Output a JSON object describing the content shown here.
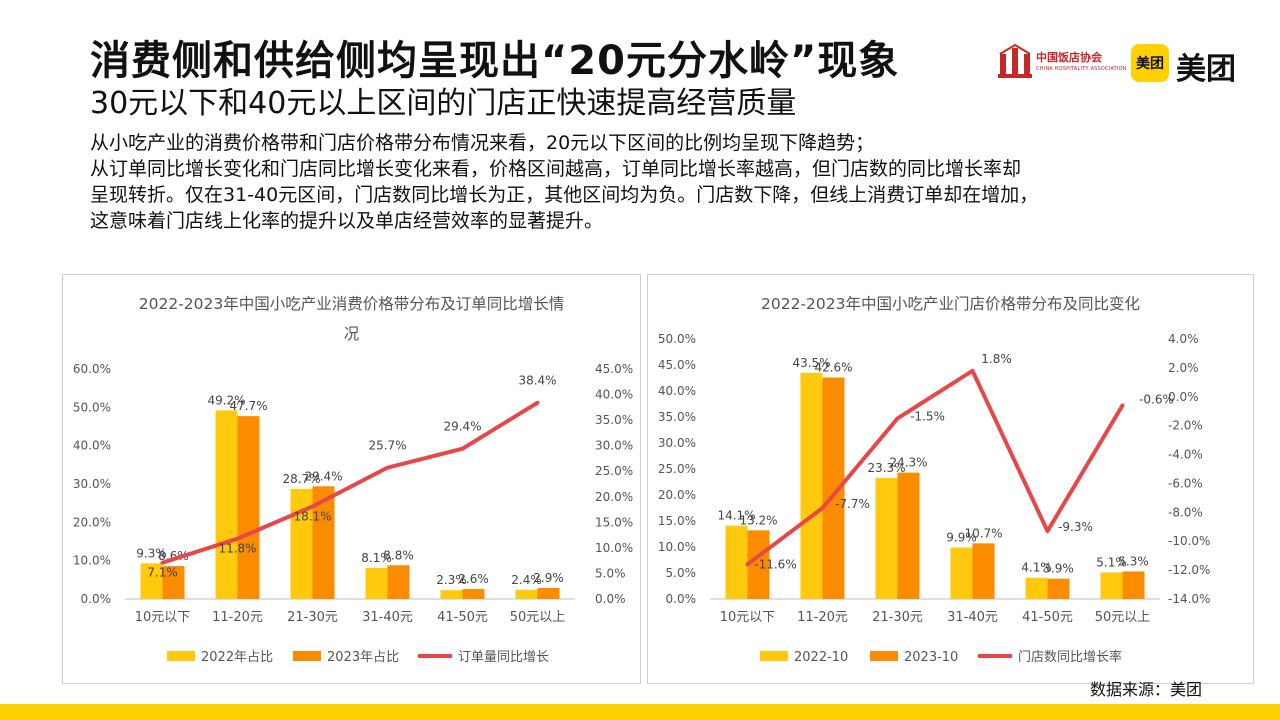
{
  "header": {
    "title": "消费侧和供给侧均呈现出“20元分水岭”现象",
    "subtitle": "30元以下和40元以上区间的门店正快速提高经营质量"
  },
  "logos": {
    "cha_name": "中国饭店协会",
    "cha_en": "CHINA HOSPITALITY ASSOCIATION",
    "meituan_badge": "美团",
    "meituan_text": "美团"
  },
  "description": [
    "从小吃产业的消费价格带和门店价格带分布情况来看，20元以下区间的比例均呈现下降趋势；",
    "从订单同比增长变化和门店同比增长变化来看，价格区间越高，订单同比增长率越高，但门店数的同比增长率却",
    "呈现转折。仅在31-40元区间，门店数同比增长为正，其他区间均为负。门店数下降，但线上消费订单却在增加，",
    "这意味着门店线上化率的提升以及单店经营效率的显著提升。"
  ],
  "source": "数据来源：美团",
  "colors": {
    "bar_a": "#ffc90e",
    "bar_b": "#fb8c00",
    "line": "#e8474a",
    "accent_bar": "#ffd100"
  },
  "chart_data": [
    {
      "type": "bar",
      "title": "2022-2023年中国小吃产业消费价格带分布及订单同比增长情况",
      "title_lines": [
        "2022-2023年中国小吃产业消费价格带分布及订单同比增长情",
        "况"
      ],
      "categories": [
        "10元以下",
        "11-20元",
        "21-30元",
        "31-40元",
        "41-50元",
        "50元以上"
      ],
      "series": [
        {
          "name": "2022年占比",
          "type": "bar",
          "axis": "left",
          "values": [
            9.3,
            49.2,
            28.7,
            8.1,
            2.3,
            2.4
          ],
          "labels": [
            "9.3%",
            "49.2%",
            "28.7%",
            "8.1%",
            "2.3%",
            "2.4%"
          ]
        },
        {
          "name": "2023年占比",
          "type": "bar",
          "axis": "left",
          "values": [
            8.6,
            47.7,
            29.4,
            8.8,
            2.6,
            2.9
          ],
          "labels": [
            "8.6%",
            "47.7%",
            "29.4%",
            "8.8%",
            "2.6%",
            "2.9%"
          ]
        },
        {
          "name": "订单量同比增长",
          "type": "line",
          "axis": "right",
          "values": [
            7.1,
            11.8,
            18.1,
            25.7,
            29.4,
            38.4
          ],
          "labels": [
            "7.1%",
            "11.8%",
            "18.1%",
            "25.7%",
            "29.4%",
            "38.4%"
          ]
        }
      ],
      "y_left": {
        "min": 0,
        "max": 60,
        "step": 10,
        "ticks": [
          "0.0%",
          "10.0%",
          "20.0%",
          "30.0%",
          "40.0%",
          "50.0%",
          "60.0%"
        ]
      },
      "y_right": {
        "min": 0,
        "max": 45,
        "step": 5,
        "ticks": [
          "0.0%",
          "5.0%",
          "10.0%",
          "15.0%",
          "20.0%",
          "25.0%",
          "30.0%",
          "35.0%",
          "40.0%",
          "45.0%"
        ]
      },
      "grid": false,
      "legend": "bottom"
    },
    {
      "type": "bar",
      "title": "2022-2023年中国小吃产业门店价格带分布及同比变化",
      "title_lines": [
        "2022-2023年中国小吃产业门店价格带分布及同比变化"
      ],
      "categories": [
        "10元以下",
        "11-20元",
        "21-30元",
        "31-40元",
        "41-50元",
        "50元以上"
      ],
      "series": [
        {
          "name": "2022-10",
          "type": "bar",
          "axis": "left",
          "values": [
            14.1,
            43.5,
            23.3,
            9.9,
            4.1,
            5.1
          ],
          "labels": [
            "14.1%",
            "43.5%",
            "23.3%",
            "9.9%",
            "4.1%",
            "5.1%"
          ]
        },
        {
          "name": "2023-10",
          "type": "bar",
          "axis": "left",
          "values": [
            13.2,
            42.6,
            24.3,
            10.7,
            3.9,
            5.3
          ],
          "labels": [
            "13.2%",
            "42.6%",
            "24.3%",
            "10.7%",
            "3.9%",
            "5.3%"
          ]
        },
        {
          "name": "门店数同比增长率",
          "type": "line",
          "axis": "right",
          "values": [
            -11.6,
            -7.7,
            -1.5,
            1.8,
            -9.3,
            -0.6
          ],
          "labels": [
            "-11.6%",
            "-7.7%",
            "-1.5%",
            "1.8%",
            "-9.3%",
            "-0.6%"
          ]
        }
      ],
      "y_left": {
        "min": 0,
        "max": 50,
        "step": 5,
        "ticks": [
          "0.0%",
          "5.0%",
          "10.0%",
          "15.0%",
          "20.0%",
          "25.0%",
          "30.0%",
          "35.0%",
          "40.0%",
          "45.0%",
          "50.0%"
        ]
      },
      "y_right": {
        "min": -14,
        "max": 4,
        "step": 2,
        "ticks": [
          "-14.0%",
          "-12.0%",
          "-10.0%",
          "-8.0%",
          "-6.0%",
          "-4.0%",
          "-2.0%",
          "0.0%",
          "2.0%",
          "4.0%"
        ]
      },
      "grid": false,
      "legend": "bottom"
    }
  ]
}
